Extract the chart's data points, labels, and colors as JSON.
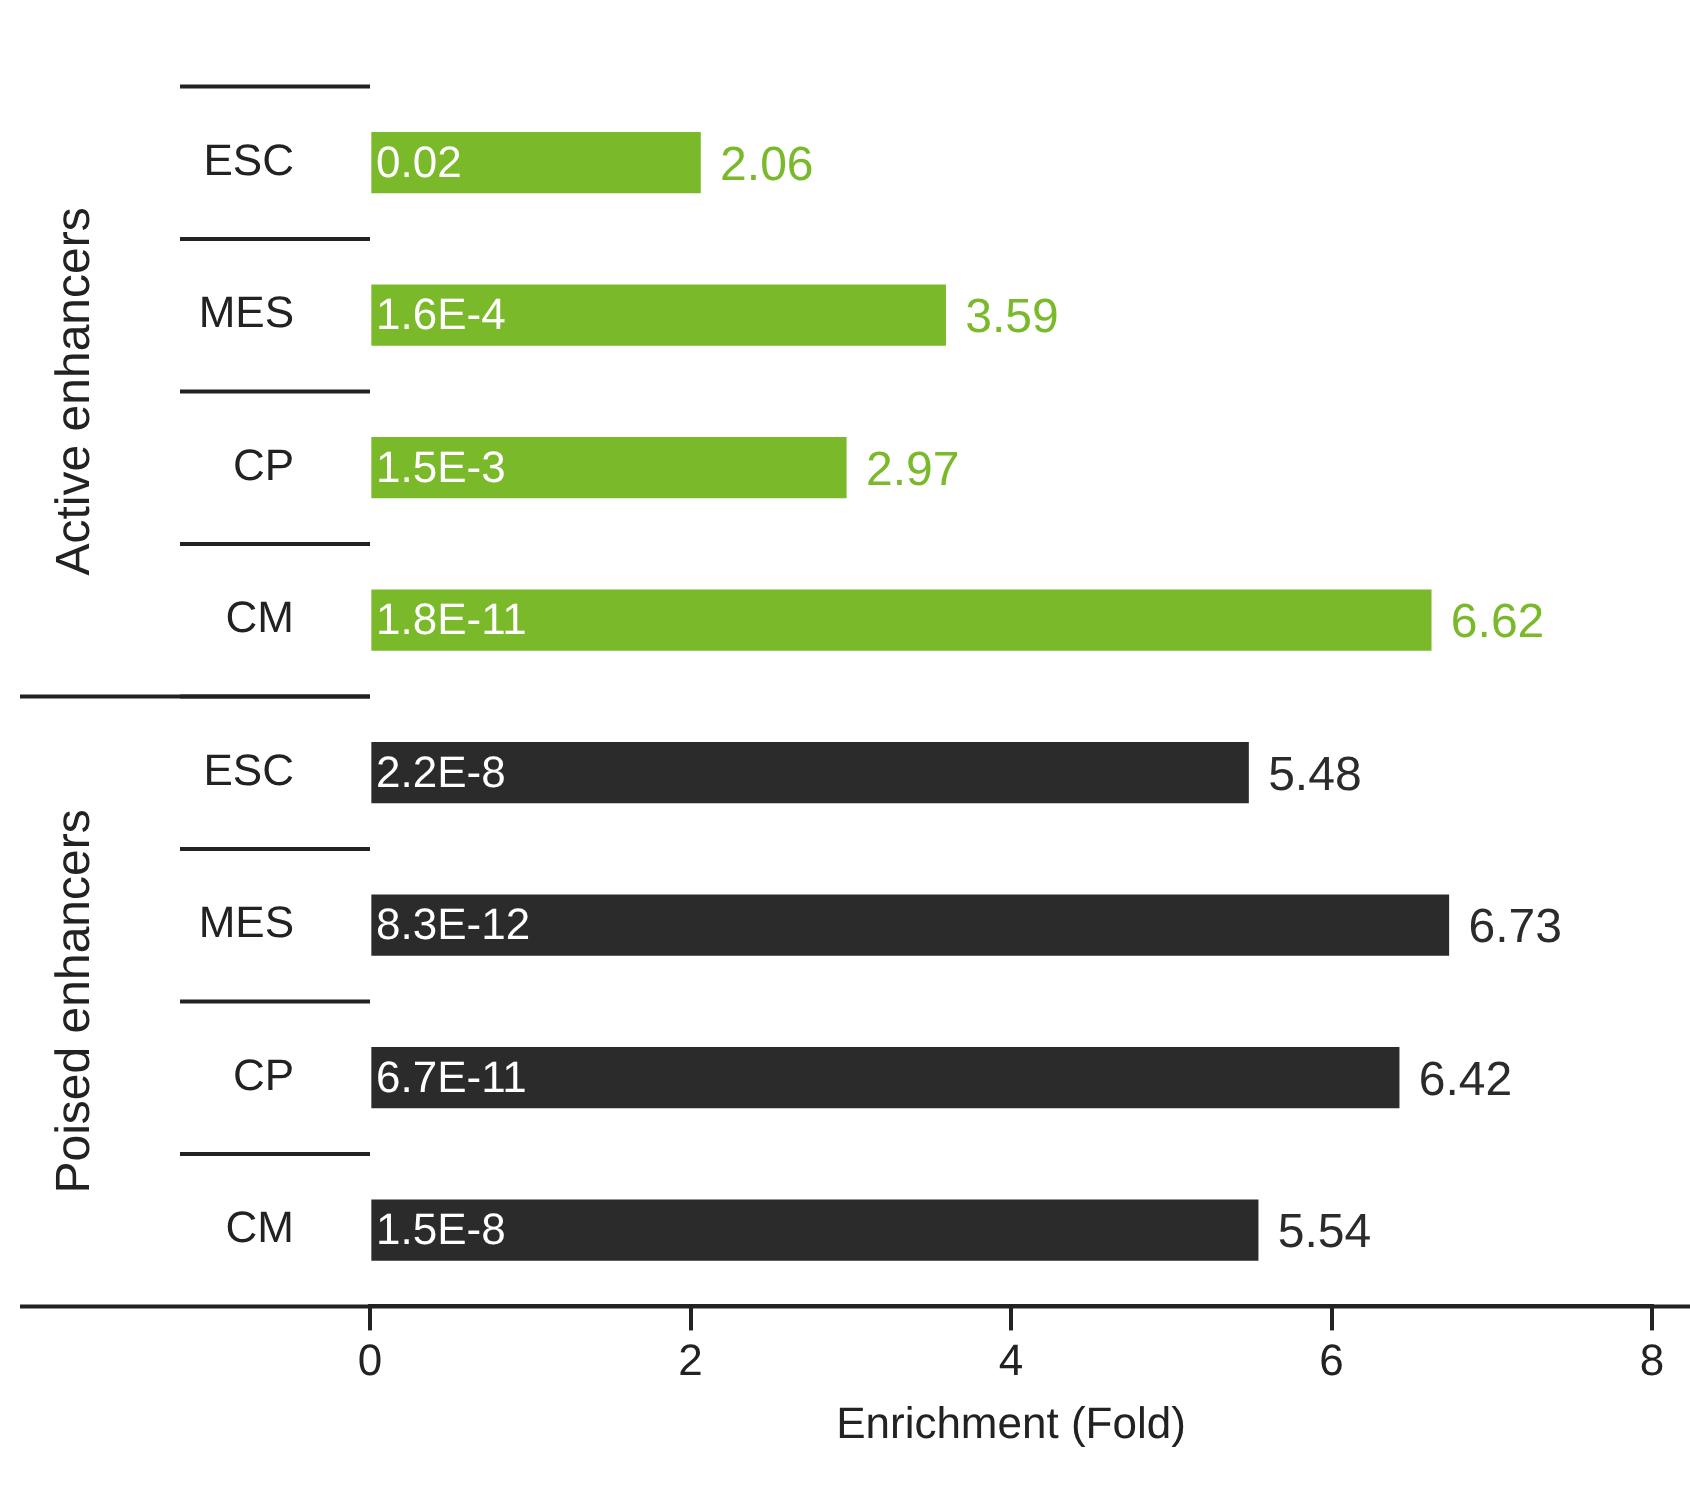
{
  "chart_data": {
    "type": "bar",
    "orientation": "horizontal",
    "xlabel": "Enrichment (Fold)",
    "categories": [
      "ESC",
      "MES",
      "CP",
      "CM",
      "ESC",
      "MES",
      "CP",
      "CM"
    ],
    "series": [
      {
        "color": "#7ab929",
        "values": [
          2.06,
          3.59,
          2.97,
          6.62,
          null,
          null,
          null,
          null
        ]
      },
      {
        "color": "#2b2b2b",
        "values": [
          null,
          null,
          null,
          null,
          5.48,
          6.73,
          6.42,
          5.54
        ]
      }
    ],
    "annotations": [
      "0.02",
      "1.6E-4",
      "1.5E-3",
      "1.8E-11",
      "2.2E-8",
      "8.3E-12",
      "6.7E-11",
      "1.5E-8",
      "Active enhancers",
      "Poised enhancers"
    ],
    "data_labels": true,
    "xlim": [
      0,
      8
    ],
    "xticks": [
      0,
      2,
      4,
      6,
      8
    ],
    "grid": false,
    "legend": false
  }
}
